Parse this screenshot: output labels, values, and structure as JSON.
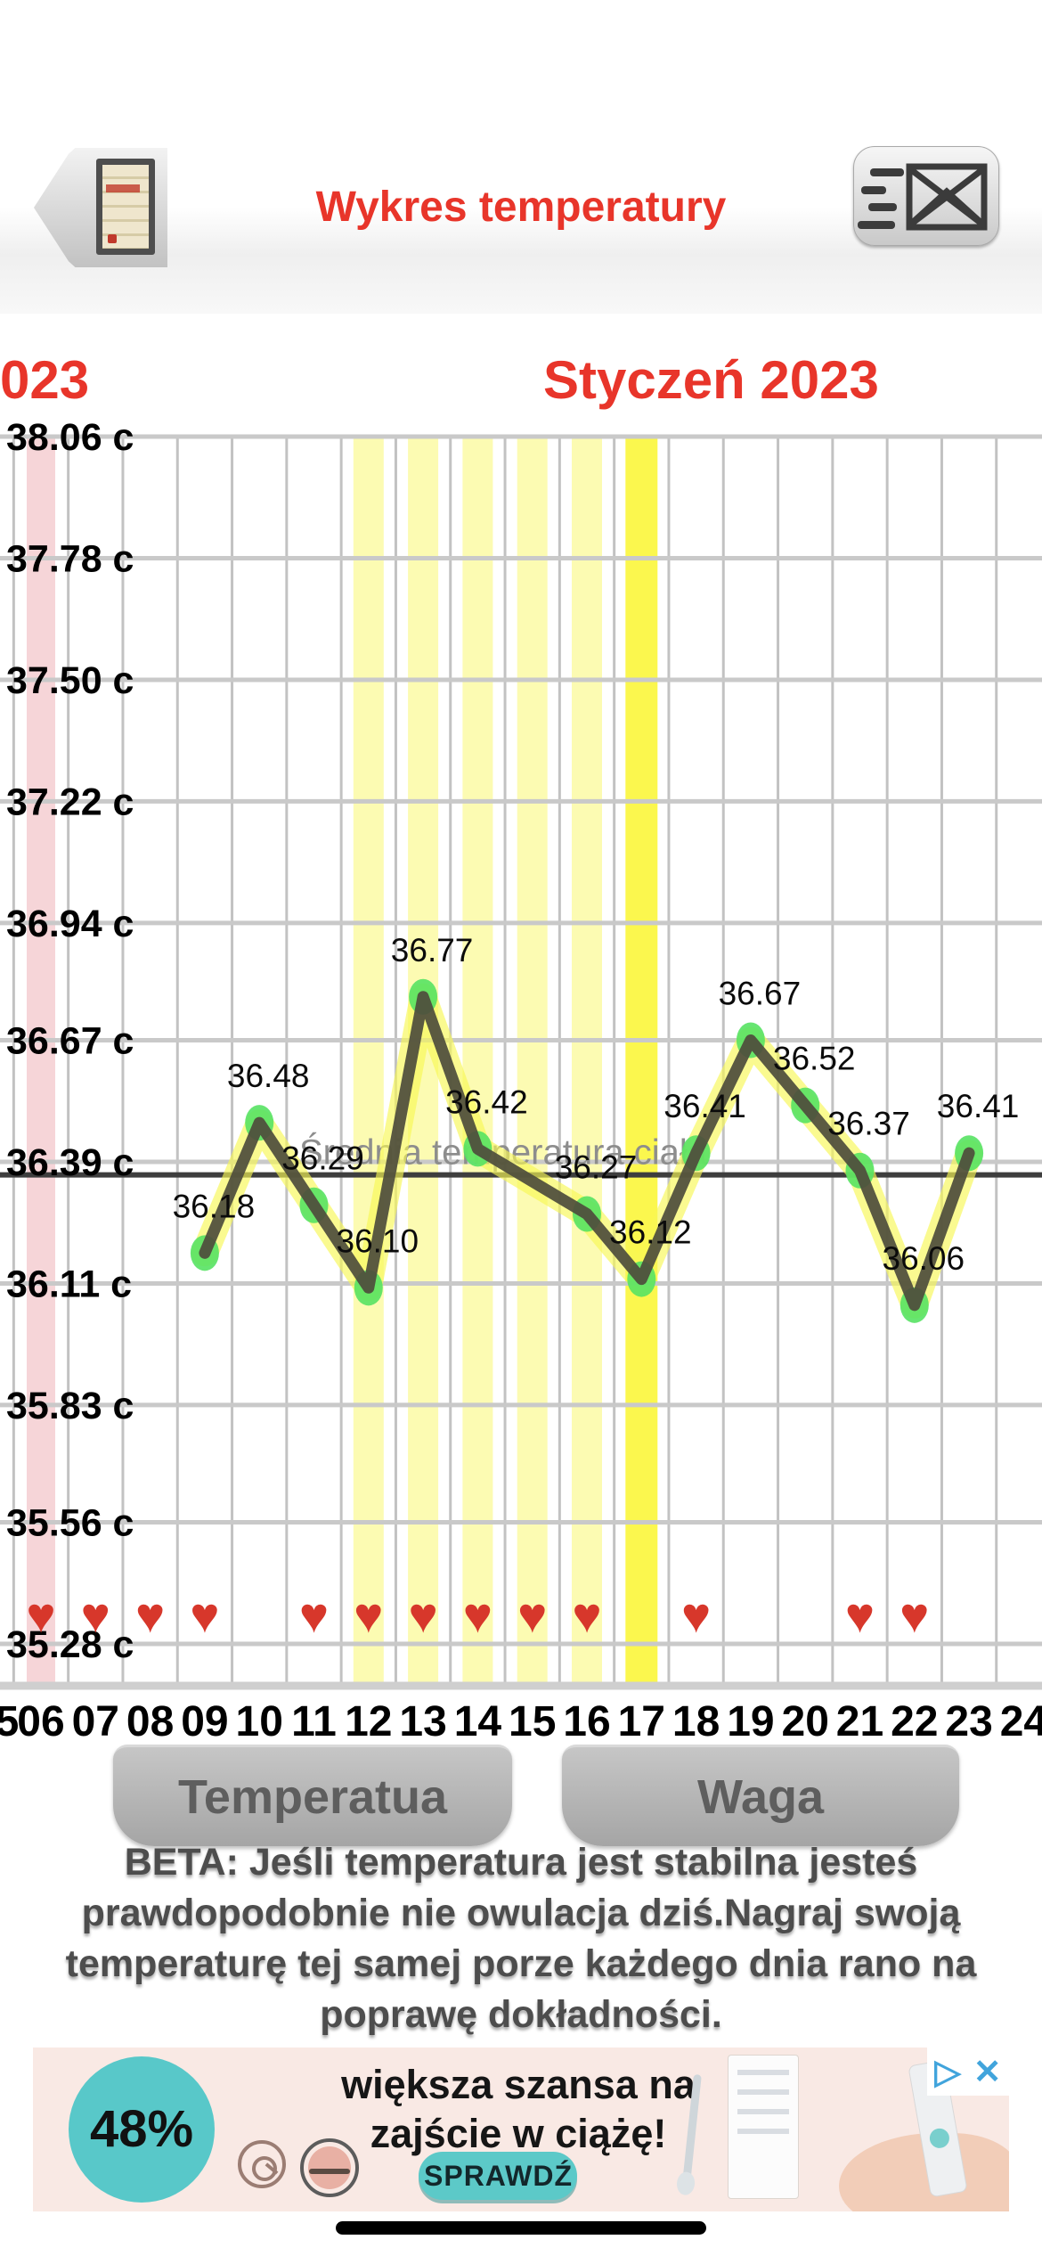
{
  "header": {
    "title": "Wykres temperatury",
    "back_button": "calendar-back",
    "send_button": "send-report"
  },
  "months": {
    "left_partial": "023",
    "current": "Styczeń 2023"
  },
  "chart_data": {
    "type": "line",
    "title": "Wykres temperatury",
    "unit": "c",
    "ylim": [
      35.28,
      38.06
    ],
    "grid": true,
    "legend_position": "none",
    "y_tick_values": [
      38.06,
      37.78,
      37.5,
      37.22,
      36.94,
      36.67,
      36.39,
      36.11,
      35.83,
      35.56,
      35.28
    ],
    "y_tick_labels": [
      "38.06 c",
      "37.78 c",
      "37.50 c",
      "37.22 c",
      "36.94 c",
      "36.67 c",
      "36.39 c",
      "36.11 c",
      "35.83 c",
      "35.56 c",
      "35.28 c"
    ],
    "x_days": [
      5,
      6,
      7,
      8,
      9,
      10,
      11,
      12,
      13,
      14,
      15,
      16,
      17,
      18,
      19,
      20,
      21,
      22,
      23,
      24
    ],
    "x_labels": [
      "5",
      "06",
      "07",
      "08",
      "09",
      "10",
      "11",
      "12",
      "13",
      "14",
      "15",
      "16",
      "17",
      "18",
      "19",
      "20",
      "21",
      "22",
      "23",
      "24"
    ],
    "series": [
      {
        "name": "Temperatura",
        "points": [
          {
            "day": 9,
            "value": 36.18,
            "label": "36.18"
          },
          {
            "day": 10,
            "value": 36.48,
            "label": "36.48"
          },
          {
            "day": 11,
            "value": 36.29,
            "label": "36.29"
          },
          {
            "day": 12,
            "value": 36.1,
            "label": "36.10"
          },
          {
            "day": 13,
            "value": 36.77,
            "label": "36.77"
          },
          {
            "day": 14,
            "value": 36.42,
            "label": "36.42"
          },
          {
            "day": 16,
            "value": 36.27,
            "label": "36.27"
          },
          {
            "day": 17,
            "value": 36.12,
            "label": "36.12"
          },
          {
            "day": 18,
            "value": 36.41,
            "label": "36.41"
          },
          {
            "day": 19,
            "value": 36.67,
            "label": "36.67"
          },
          {
            "day": 20,
            "value": 36.52,
            "label": "36.52"
          },
          {
            "day": 21,
            "value": 36.37,
            "label": "36.37"
          },
          {
            "day": 22,
            "value": 36.06,
            "label": "36.06"
          },
          {
            "day": 23,
            "value": 36.41,
            "label": "36.41"
          }
        ]
      }
    ],
    "average_line": {
      "label": "Średnia temperatura ciała",
      "value": 36.36
    },
    "bands": {
      "period_days": [
        6
      ],
      "fertile_days": [
        12,
        13,
        14,
        15,
        16
      ],
      "ovulation_days": [
        17
      ]
    },
    "heart_days": [
      6,
      7,
      8,
      9,
      11,
      12,
      13,
      14,
      15,
      16,
      18,
      21,
      22
    ]
  },
  "tabs": {
    "temperature": "Temperatua",
    "weight": "Waga"
  },
  "beta_note": "BETA: Jeśli temperatura jest stabilna jesteś prawdopodobnie nie owulacja dziś.Nagraj swoją temperaturę tej samej porze każdego dnia rano na poprawę dokładności.",
  "ad": {
    "discount": "48%",
    "headline1": "większa szansa na",
    "headline2": "zajście w ciążę!",
    "cta": "SPRAWDŹ"
  },
  "icons": {
    "heart": "♥",
    "adchoices_triangle": "▷",
    "close": "✕"
  },
  "colors": {
    "accent_red": "#e8352a",
    "period_band": "#f6d5d8",
    "fertile_band": "#fcfbb2",
    "ovulation_band": "#fbf74e",
    "grid_h": "#c9c9c9",
    "grid_v": "#c2c2c2",
    "axis_bottom": "#cfcfcf",
    "line": "#4f4e3c",
    "line_glow": "#f8f855",
    "marker": "#57e263",
    "average_line": "#3e3e3e",
    "average_label": "#8d8d8d",
    "data_label": "#0b0b0b",
    "heart": "#d7372b",
    "teal": "#58c8c9"
  }
}
